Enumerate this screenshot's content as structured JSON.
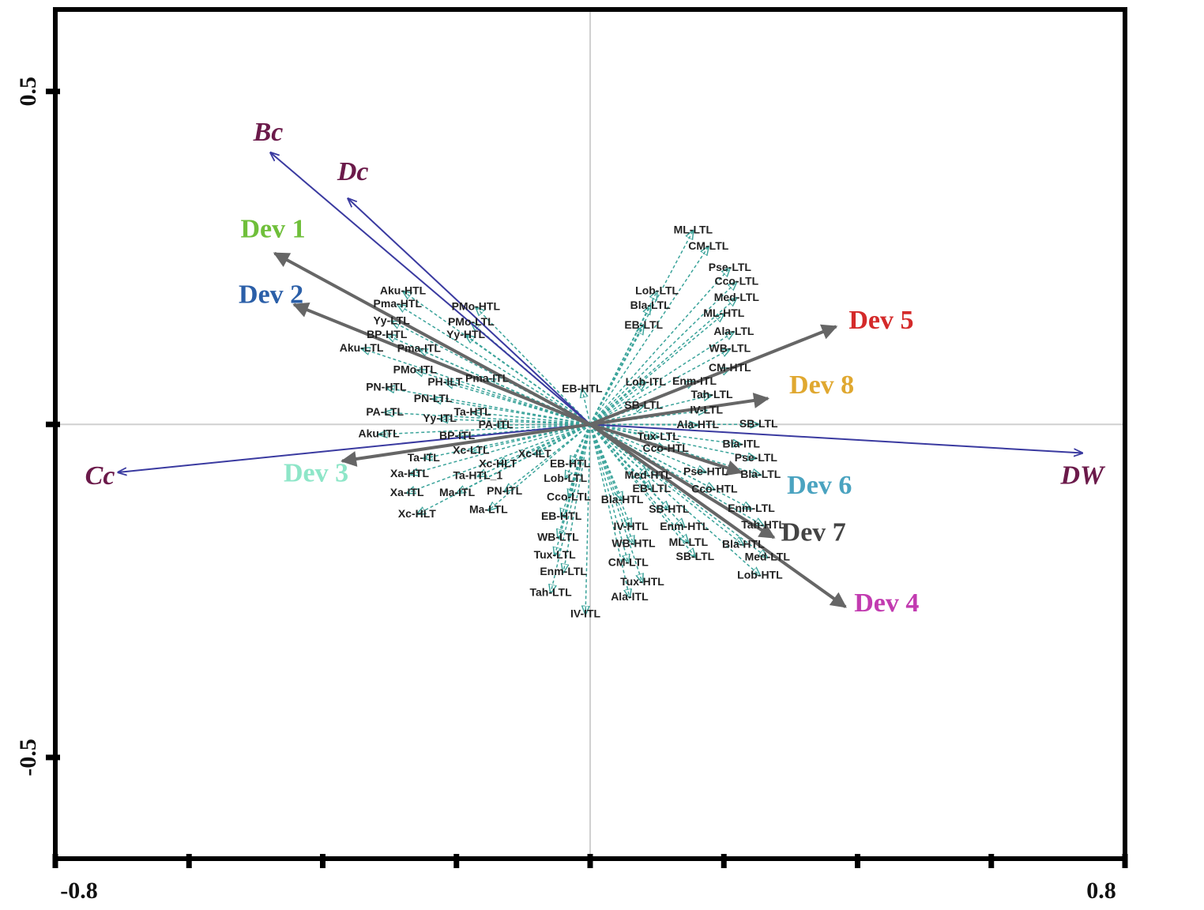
{
  "chart_data": {
    "type": "biplot",
    "xlim": [
      -0.8,
      0.8
    ],
    "ylim": [
      -0.652,
      0.623
    ],
    "xticks": [
      -0.8,
      0.8
    ],
    "yticks": [
      0.5,
      -0.5
    ],
    "xminor_ticks": [
      -0.6,
      -0.4,
      -0.2,
      0,
      0.2,
      0.4,
      0.6
    ],
    "yminor_ticks": [
      0
    ],
    "zero_lines": true,
    "environment": {
      "color": "#3a3aa0",
      "label_color": "#6b1a4a",
      "vectors": [
        {
          "label": "Bc",
          "x": -0.478,
          "y": 0.408
        },
        {
          "label": "Dc",
          "x": -0.362,
          "y": 0.339
        },
        {
          "label": "Cc",
          "x": -0.706,
          "y": -0.072
        },
        {
          "label": "DW",
          "x": 0.736,
          "y": -0.043
        }
      ]
    },
    "development": {
      "color": "#666666",
      "vectors": [
        {
          "label": "Dev 1",
          "x": -0.472,
          "y": 0.257,
          "color": "#6fbf3a"
        },
        {
          "label": "Dev 2",
          "x": -0.443,
          "y": 0.18,
          "color": "#2b5fa8"
        },
        {
          "label": "Dev 3",
          "x": -0.371,
          "y": -0.055,
          "color": "#8ee6c8"
        },
        {
          "label": "Dev 4",
          "x": 0.382,
          "y": -0.274,
          "color": "#c23bb0"
        },
        {
          "label": "Dev 5",
          "x": 0.368,
          "y": 0.147,
          "color": "#d42a2a"
        },
        {
          "label": "Dev 6",
          "x": 0.226,
          "y": -0.072,
          "color": "#4aa3c0"
        },
        {
          "label": "Dev 7",
          "x": 0.275,
          "y": -0.17,
          "color": "#444444"
        },
        {
          "label": "Dev 8",
          "x": 0.266,
          "y": 0.039,
          "color": "#e0a830"
        }
      ]
    },
    "species": {
      "color": "#3aa39a",
      "vectors": [
        {
          "label": "Aku-HTL",
          "x": -0.28,
          "y": 0.2
        },
        {
          "label": "Pma-HTL",
          "x": -0.288,
          "y": 0.18
        },
        {
          "label": "PMo-HTL",
          "x": -0.171,
          "y": 0.176
        },
        {
          "label": "Yy-LTL",
          "x": -0.297,
          "y": 0.155
        },
        {
          "label": "PMo-LTL",
          "x": -0.178,
          "y": 0.153
        },
        {
          "label": "BP-HTL",
          "x": -0.304,
          "y": 0.134
        },
        {
          "label": "Yy-HTL",
          "x": -0.186,
          "y": 0.134
        },
        {
          "label": "Aku-LTL",
          "x": -0.342,
          "y": 0.114
        },
        {
          "label": "Pma-ITL",
          "x": -0.256,
          "y": 0.113
        },
        {
          "label": "PMo-ITL",
          "x": -0.262,
          "y": 0.081
        },
        {
          "label": "PN-HTL",
          "x": -0.305,
          "y": 0.055
        },
        {
          "label": "PH-ILT",
          "x": -0.217,
          "y": 0.063
        },
        {
          "label": "PN-LTL",
          "x": -0.235,
          "y": 0.038
        },
        {
          "label": "Pma-ITL",
          "x": -0.154,
          "y": 0.068
        },
        {
          "label": "PA-LTL",
          "x": -0.307,
          "y": 0.018
        },
        {
          "label": "Yy-ITL",
          "x": -0.225,
          "y": 0.008
        },
        {
          "label": "Ta-HTL",
          "x": -0.176,
          "y": 0.018
        },
        {
          "label": "PA-ITL",
          "x": -0.141,
          "y": -0.001
        },
        {
          "label": "Aku-ITL",
          "x": -0.316,
          "y": -0.015
        },
        {
          "label": "BP-ITL",
          "x": -0.199,
          "y": -0.018
        },
        {
          "label": "Ta-ITL",
          "x": -0.249,
          "y": -0.051
        },
        {
          "label": "Xc-LTL",
          "x": -0.178,
          "y": -0.04
        },
        {
          "label": "Xc-HLT",
          "x": -0.138,
          "y": -0.06
        },
        {
          "label": "Xc-ILT",
          "x": -0.083,
          "y": -0.045
        },
        {
          "label": "Xa-HTL",
          "x": -0.27,
          "y": -0.075
        },
        {
          "label": "Ta-HTL_1",
          "x": -0.168,
          "y": -0.078
        },
        {
          "label": "Xa-ITL",
          "x": -0.274,
          "y": -0.103
        },
        {
          "label": "Ma-ITL",
          "x": -0.199,
          "y": -0.103
        },
        {
          "label": "PN-ITL",
          "x": -0.128,
          "y": -0.101
        },
        {
          "label": "Xc-HLT",
          "x": -0.259,
          "y": -0.135
        },
        {
          "label": "Ma-LTL",
          "x": -0.152,
          "y": -0.129
        },
        {
          "label": "EB-HTL",
          "x": -0.012,
          "y": 0.053
        },
        {
          "label": "EB-HTL",
          "x": -0.03,
          "y": -0.06
        },
        {
          "label": "Lob-LTL",
          "x": -0.037,
          "y": -0.082
        },
        {
          "label": "Cco-LTL",
          "x": -0.032,
          "y": -0.11
        },
        {
          "label": "EB-HTL",
          "x": -0.043,
          "y": -0.139
        },
        {
          "label": "WB-LTL",
          "x": -0.048,
          "y": -0.17
        },
        {
          "label": "Tux-LTL",
          "x": -0.053,
          "y": -0.197
        },
        {
          "label": "Enm-LTL",
          "x": -0.04,
          "y": -0.222
        },
        {
          "label": "Tah-LTL",
          "x": -0.059,
          "y": -0.253
        },
        {
          "label": "IV-ITL",
          "x": -0.007,
          "y": -0.285
        },
        {
          "label": "ML-LTL",
          "x": 0.154,
          "y": 0.291
        },
        {
          "label": "CM-LTL",
          "x": 0.177,
          "y": 0.267
        },
        {
          "label": "Pse-LTL",
          "x": 0.209,
          "y": 0.235
        },
        {
          "label": "Cco-LTL",
          "x": 0.219,
          "y": 0.214
        },
        {
          "label": "Lob-LTL",
          "x": 0.1,
          "y": 0.2
        },
        {
          "label": "Med-LTL",
          "x": 0.219,
          "y": 0.19
        },
        {
          "label": "Bla-LTL",
          "x": 0.09,
          "y": 0.178
        },
        {
          "label": "ML-HTL",
          "x": 0.2,
          "y": 0.166
        },
        {
          "label": "EB-LTL",
          "x": 0.08,
          "y": 0.148
        },
        {
          "label": "Ala-LTL",
          "x": 0.215,
          "y": 0.139
        },
        {
          "label": "WB-LTL",
          "x": 0.209,
          "y": 0.113
        },
        {
          "label": "CM-HTL",
          "x": 0.209,
          "y": 0.084
        },
        {
          "label": "Lob-ITL",
          "x": 0.083,
          "y": 0.063
        },
        {
          "label": "Enm-ITL",
          "x": 0.156,
          "y": 0.064
        },
        {
          "label": "Tah-LTL",
          "x": 0.182,
          "y": 0.044
        },
        {
          "label": "SB-LTL",
          "x": 0.08,
          "y": 0.028
        },
        {
          "label": "IV-LTL",
          "x": 0.174,
          "y": 0.021
        },
        {
          "label": "Ala-HTL",
          "x": 0.161,
          "y": -0.001
        },
        {
          "label": "SB-LTL",
          "x": 0.252,
          "y": 0
        },
        {
          "label": "Tux-LTL",
          "x": 0.102,
          "y": -0.019
        },
        {
          "label": "Cco-HTL",
          "x": 0.113,
          "y": -0.037
        },
        {
          "label": "Bla-ITL",
          "x": 0.226,
          "y": -0.03
        },
        {
          "label": "Pse-LTL",
          "x": 0.248,
          "y": -0.051
        },
        {
          "label": "Pse-HTL",
          "x": 0.173,
          "y": -0.072
        },
        {
          "label": "Med-HTL",
          "x": 0.087,
          "y": -0.077
        },
        {
          "label": "Bla-LTL",
          "x": 0.255,
          "y": -0.076
        },
        {
          "label": "EB-LTL",
          "x": 0.092,
          "y": -0.097
        },
        {
          "label": "Cco-HTL",
          "x": 0.186,
          "y": -0.098
        },
        {
          "label": "Bla-HTL",
          "x": 0.048,
          "y": -0.114
        },
        {
          "label": "SB-HTL",
          "x": 0.118,
          "y": -0.128
        },
        {
          "label": "Enm-LTL",
          "x": 0.241,
          "y": -0.127
        },
        {
          "label": "IV-HTL",
          "x": 0.061,
          "y": -0.154
        },
        {
          "label": "Enm-HTL",
          "x": 0.141,
          "y": -0.154
        },
        {
          "label": "Tah-HTL",
          "x": 0.259,
          "y": -0.152
        },
        {
          "label": "WB-HTL",
          "x": 0.065,
          "y": -0.18
        },
        {
          "label": "ML-LTL",
          "x": 0.147,
          "y": -0.178
        },
        {
          "label": "Bla-HTL",
          "x": 0.229,
          "y": -0.181
        },
        {
          "label": "Med-LTL",
          "x": 0.265,
          "y": -0.2
        },
        {
          "label": "CM-LTL",
          "x": 0.057,
          "y": -0.208
        },
        {
          "label": "SB-LTL",
          "x": 0.157,
          "y": -0.199
        },
        {
          "label": "Lob-HTL",
          "x": 0.254,
          "y": -0.227
        },
        {
          "label": "Tux-HTL",
          "x": 0.078,
          "y": -0.237
        },
        {
          "label": "Ala-ITL",
          "x": 0.059,
          "y": -0.26
        }
      ]
    }
  }
}
